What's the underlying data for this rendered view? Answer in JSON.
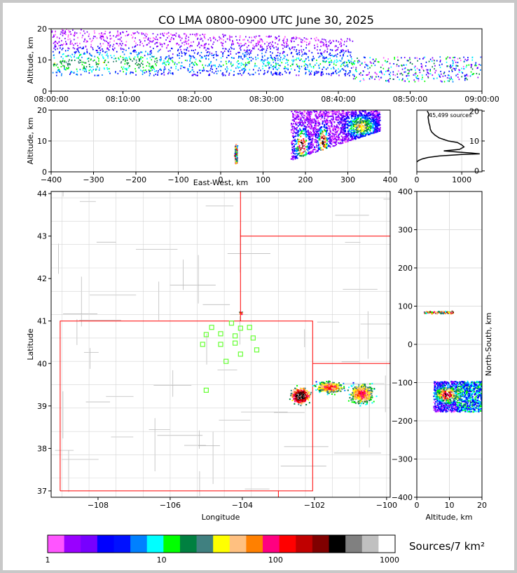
{
  "title": "CO LMA 0800-0900 UTC June 30, 2025",
  "palette": [
    "#ff55ff",
    "#9900ff",
    "#7700ff",
    "#0000ff",
    "#0011ff",
    "#0080ff",
    "#00ffff",
    "#00ff00",
    "#008040",
    "#408080",
    "#ffff00",
    "#ffc080",
    "#ff8000",
    "#ff0080",
    "#ff0000",
    "#c00000",
    "#800000",
    "#000000",
    "#808080",
    "#c0c0c0"
  ],
  "chart_data": [
    {
      "id": "time-altitude",
      "type": "heatmap",
      "ylabel": "Altitude, km",
      "ylim": [
        0,
        20
      ],
      "y_ticks": [
        "0",
        "10",
        "20"
      ],
      "x_ticks": [
        "08:00:00",
        "08:10:00",
        "08:20:00",
        "08:30:00",
        "08:40:00",
        "08:50:00",
        "09:00:00"
      ],
      "xlim": [
        "08:00:00",
        "09:00:00"
      ]
    },
    {
      "id": "ew-altitude",
      "type": "heatmap",
      "xlabel": "East-West, km",
      "ylabel": "Altitude, km",
      "xlim": [
        -400,
        400
      ],
      "ylim": [
        0,
        20
      ],
      "x_ticks": [
        "−400",
        "−300",
        "−200",
        "−100",
        "0",
        "100",
        "200",
        "300",
        "400"
      ],
      "y_ticks": [
        "0",
        "10",
        "20"
      ],
      "clusters": [
        {
          "x": 35,
          "alt": 6
        },
        {
          "x": 190,
          "alt": 9
        },
        {
          "x": 240,
          "alt": 10
        },
        {
          "x": 330,
          "alt": 15
        }
      ]
    },
    {
      "id": "altitude-histogram",
      "type": "line",
      "annotation": "45,499 sources",
      "xlim": [
        0,
        1450
      ],
      "ylim": [
        0,
        20
      ],
      "x_ticks": [
        "0",
        "1000"
      ],
      "y_ticks": [
        "0",
        "10",
        "20"
      ],
      "x": [
        0,
        40,
        120,
        250,
        500,
        800,
        1000,
        1400,
        1200,
        900,
        600,
        950,
        1050,
        1000,
        900,
        700,
        500,
        400,
        330,
        300,
        290,
        270,
        260,
        250,
        270,
        230
      ],
      "y": [
        3,
        3.5,
        4,
        4.5,
        5,
        5.3,
        5.5,
        5.7,
        6,
        6.3,
        6.7,
        7.2,
        8,
        8.7,
        9.5,
        10,
        11,
        12,
        13,
        14,
        15,
        16,
        17,
        18,
        19,
        20
      ]
    },
    {
      "id": "plan-view",
      "type": "heatmap",
      "xlabel": "Longitude",
      "ylabel": "Latitude",
      "xlim": [
        -109.3,
        -99.9
      ],
      "ylim": [
        36.85,
        44.05
      ],
      "x_ticks": [
        "−108",
        "−106",
        "−104",
        "−102",
        "−100"
      ],
      "y_ticks": [
        "37",
        "38",
        "39",
        "40",
        "41",
        "42",
        "43",
        "44"
      ],
      "stations": [
        [
          -104.85,
          40.85
        ],
        [
          -104.3,
          40.95
        ],
        [
          -104.05,
          40.83
        ],
        [
          -103.8,
          40.85
        ],
        [
          -105.0,
          40.68
        ],
        [
          -104.6,
          40.7
        ],
        [
          -104.2,
          40.65
        ],
        [
          -103.7,
          40.6
        ],
        [
          -105.1,
          40.45
        ],
        [
          -104.6,
          40.45
        ],
        [
          -104.2,
          40.48
        ],
        [
          -103.6,
          40.32
        ],
        [
          -104.05,
          40.22
        ],
        [
          -104.45,
          40.05
        ],
        [
          -105.0,
          39.37
        ]
      ]
    },
    {
      "id": "ns-altitude",
      "type": "heatmap",
      "xlabel": "Altitude, km",
      "ylabel": "North-South, km",
      "xlim": [
        0,
        20
      ],
      "ylim": [
        -400,
        400
      ],
      "x_ticks": [
        "0",
        "10",
        "20"
      ],
      "y_ticks": [
        "400",
        "300",
        "200",
        "100",
        "0",
        "−100",
        "−200",
        "−300",
        "−400"
      ]
    }
  ],
  "colorbar": {
    "label": "Sources/7 km²",
    "ticks": [
      "1",
      "10",
      "100",
      "1000"
    ],
    "colors": [
      "#ff55ff",
      "#9900ff",
      "#7700ff",
      "#0000ff",
      "#0011ff",
      "#0080ff",
      "#00ffff",
      "#00ff00",
      "#008040",
      "#408080",
      "#ffff00",
      "#ffc080",
      "#ff8000",
      "#ff0080",
      "#ff0000",
      "#c00000",
      "#800000",
      "#000000",
      "#808080",
      "#c0c0c0",
      "#ffffff"
    ]
  }
}
